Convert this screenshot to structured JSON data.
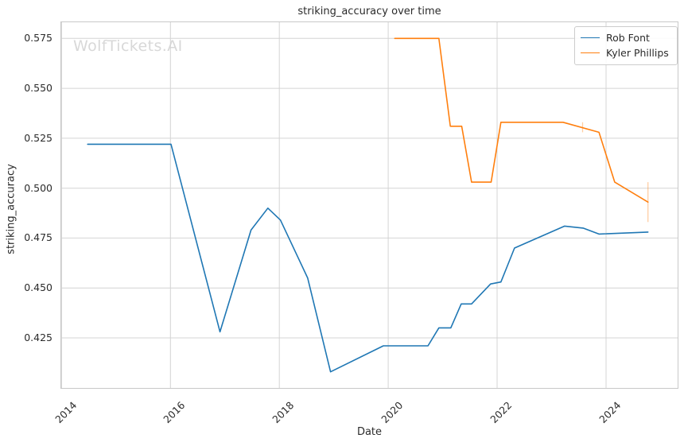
{
  "title": "striking_accuracy over time",
  "watermark": "WolfTickets.AI",
  "colors": {
    "series_blue": "#1f77b4",
    "series_orange": "#ff7f0e",
    "grid": "#d4d4d4",
    "plot_border": "#c8c8c8",
    "text": "#2b2b2b",
    "watermark": "#d8d8d8",
    "error_bar": "rgba(255,127,14,0.38)",
    "background": "#ffffff"
  },
  "legend": {
    "position": "upper right",
    "entries": [
      {
        "label": "Rob Font",
        "color": "#1f77b4"
      },
      {
        "label": "Kyler Phillips",
        "color": "#ff7f0e"
      }
    ]
  },
  "chart_data": {
    "type": "line",
    "title": "striking_accuracy over time",
    "xlabel": "Date",
    "ylabel": "striking_accuracy",
    "grid": true,
    "legend_position": "upper right",
    "xlim": [
      2013.98,
      2025.33
    ],
    "ylim": [
      0.3995,
      0.5835
    ],
    "x_ticks": [
      2014,
      2016,
      2018,
      2020,
      2022,
      2024
    ],
    "y_ticks": [
      0.425,
      0.45,
      0.475,
      0.5,
      0.525,
      0.55,
      0.575
    ],
    "series": [
      {
        "name": "Rob Font",
        "color": "#1f77b4",
        "points": [
          [
            2014.48,
            0.522
          ],
          [
            2016.01,
            0.522
          ],
          [
            2016.91,
            0.428
          ],
          [
            2017.48,
            0.479
          ],
          [
            2017.79,
            0.49
          ],
          [
            2018.02,
            0.484
          ],
          [
            2018.52,
            0.455
          ],
          [
            2018.94,
            0.408
          ],
          [
            2019.91,
            0.421
          ],
          [
            2020.73,
            0.421
          ],
          [
            2020.93,
            0.43
          ],
          [
            2021.15,
            0.43
          ],
          [
            2021.34,
            0.442
          ],
          [
            2021.53,
            0.442
          ],
          [
            2021.88,
            0.452
          ],
          [
            2022.07,
            0.453
          ],
          [
            2022.32,
            0.47
          ],
          [
            2023.24,
            0.481
          ],
          [
            2023.58,
            0.48
          ],
          [
            2023.87,
            0.477
          ],
          [
            2024.77,
            0.478
          ]
        ]
      },
      {
        "name": "Kyler Phillips",
        "color": "#ff7f0e",
        "points": [
          [
            2020.12,
            0.575
          ],
          [
            2020.93,
            0.575
          ],
          [
            2021.14,
            0.531
          ],
          [
            2021.35,
            0.531
          ],
          [
            2021.53,
            0.503
          ],
          [
            2021.89,
            0.503
          ],
          [
            2022.07,
            0.533
          ],
          [
            2023.21,
            0.533
          ],
          [
            2023.87,
            0.528
          ],
          [
            2024.16,
            0.503
          ],
          [
            2024.77,
            0.493
          ]
        ]
      }
    ],
    "error_bars": [
      {
        "series": "Kyler Phillips",
        "x": 2023.57,
        "y_low": 0.528,
        "y_high": 0.533
      },
      {
        "series": "Kyler Phillips",
        "x": 2024.77,
        "y_low": 0.483,
        "y_high": 0.503
      }
    ]
  }
}
